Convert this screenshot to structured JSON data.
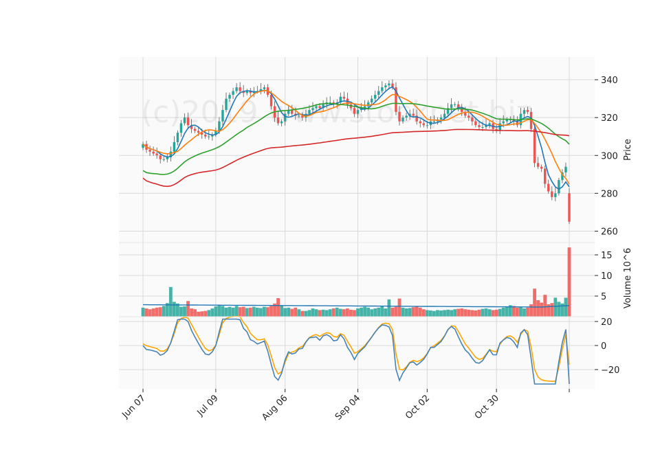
{
  "chart_data": [
    {
      "type": "candlestick",
      "panel": "price",
      "ylabel": "Price",
      "ylim": [
        254,
        352
      ],
      "yticks": [
        260,
        280,
        300,
        320,
        340
      ],
      "grid": true,
      "watermark": "(c)2019 www.stockpet.biz",
      "ohlc_note": "daily OHLC, Jun 07 - Dec 07, estimated from chart",
      "moving_averages": [
        {
          "period": 5,
          "color": "#1f77b4"
        },
        {
          "period": 10,
          "color": "#ff7f0e"
        },
        {
          "period": 30,
          "color": "#2ca02c"
        },
        {
          "period": 120,
          "color": "#d62728"
        }
      ],
      "colors": {
        "up": "#26a69a",
        "down": "#ef5350"
      }
    },
    {
      "type": "bar",
      "panel": "volume",
      "ylabel": "Volume  10^6",
      "ylim": [
        0,
        18
      ],
      "yticks": [
        5,
        10,
        15
      ],
      "grid": true
    },
    {
      "type": "line",
      "panel": "indicator",
      "ylim": [
        -36,
        24
      ],
      "yticks": [
        -20,
        0,
        20
      ],
      "grid": true,
      "series_colors": [
        "#4682b4",
        "#ffa500"
      ]
    }
  ],
  "x_axis": {
    "tick_labels": [
      "Jun 07",
      "Jul 09",
      "Aug 06",
      "Sep 04",
      "Oct 02",
      "Oct 30",
      ""
    ],
    "tick_index": [
      0,
      21,
      41,
      62,
      82,
      102,
      123
    ]
  },
  "series": {
    "close": [
      306,
      303,
      302,
      301,
      300,
      298,
      298,
      299,
      302,
      307,
      312,
      317,
      320,
      316,
      314,
      313,
      312,
      311,
      310,
      310,
      311,
      313,
      318,
      324,
      330,
      332,
      334,
      336,
      334,
      333,
      334,
      333,
      334,
      334,
      335,
      336,
      332,
      326,
      320,
      317,
      318,
      322,
      324,
      322,
      321,
      321,
      320,
      322,
      324,
      325,
      326,
      325,
      327,
      328,
      328,
      327,
      328,
      331,
      330,
      327,
      325,
      322,
      324,
      325,
      326,
      328,
      330,
      332,
      334,
      336,
      337,
      338,
      336,
      323,
      318,
      320,
      321,
      322,
      321,
      318,
      317,
      316,
      316,
      318,
      318,
      319,
      320,
      322,
      325,
      327,
      327,
      325,
      323,
      321,
      320,
      318,
      316,
      315,
      315,
      316,
      317,
      314,
      313,
      317,
      318,
      319,
      319,
      318,
      316,
      322,
      324,
      323,
      314,
      296,
      294,
      293,
      285,
      281,
      278,
      280,
      287,
      291,
      294,
      265
    ],
    "open": [
      304,
      306,
      303,
      302,
      301,
      300,
      298,
      298,
      299,
      302,
      307,
      312,
      317,
      320,
      316,
      314,
      313,
      312,
      311,
      310,
      310,
      311,
      313,
      318,
      324,
      330,
      332,
      334,
      336,
      334,
      333,
      334,
      333,
      334,
      334,
      335,
      336,
      332,
      326,
      320,
      317,
      318,
      322,
      324,
      322,
      321,
      321,
      320,
      322,
      324,
      325,
      326,
      325,
      327,
      328,
      328,
      327,
      328,
      331,
      330,
      327,
      325,
      322,
      324,
      325,
      326,
      328,
      330,
      332,
      334,
      336,
      337,
      338,
      336,
      323,
      318,
      320,
      321,
      322,
      321,
      318,
      317,
      316,
      316,
      318,
      318,
      319,
      320,
      322,
      325,
      327,
      327,
      325,
      323,
      321,
      320,
      318,
      316,
      315,
      315,
      316,
      317,
      314,
      313,
      317,
      318,
      319,
      319,
      318,
      316,
      322,
      324,
      323,
      314,
      296,
      294,
      293,
      285,
      281,
      278,
      280,
      287,
      291,
      280
    ],
    "volume": [
      2.2,
      2.0,
      1.8,
      2.0,
      2.2,
      2.3,
      2.6,
      3.3,
      7.2,
      3.6,
      3.2,
      2.4,
      2.5,
      3.8,
      2.0,
      1.8,
      1.2,
      1.3,
      1.4,
      1.6,
      2.0,
      2.5,
      2.8,
      2.6,
      2.2,
      2.4,
      2.2,
      2.6,
      2.3,
      2.4,
      2.1,
      2.2,
      2.4,
      2.2,
      2.1,
      2.4,
      2.3,
      2.6,
      3.2,
      4.5,
      2.6,
      2.1,
      2.2,
      1.9,
      2.2,
      1.8,
      1.4,
      1.4,
      1.6,
      2.0,
      1.8,
      1.6,
      1.7,
      1.6,
      1.8,
      2.0,
      2.2,
      1.9,
      1.8,
      2.0,
      1.7,
      1.6,
      2.0,
      2.2,
      2.4,
      2.2,
      1.8,
      2.0,
      2.2,
      2.6,
      2.0,
      4.2,
      2.2,
      2.4,
      4.4,
      2.2,
      2.0,
      2.1,
      2.3,
      2.5,
      2.2,
      1.8,
      1.6,
      1.5,
      1.4,
      1.6,
      1.5,
      1.6,
      1.7,
      1.6,
      1.8,
      1.9,
      2.0,
      1.8,
      1.7,
      1.6,
      1.5,
      1.7,
      1.9,
      2.0,
      1.8,
      1.6,
      1.7,
      1.9,
      2.2,
      2.5,
      2.8,
      2.6,
      2.2,
      2.4,
      2.0,
      2.2,
      3.0,
      6.8,
      4.0,
      3.4,
      5.3,
      3.0,
      3.3,
      4.6,
      3.6,
      3.2,
      4.6,
      16.8
    ]
  }
}
